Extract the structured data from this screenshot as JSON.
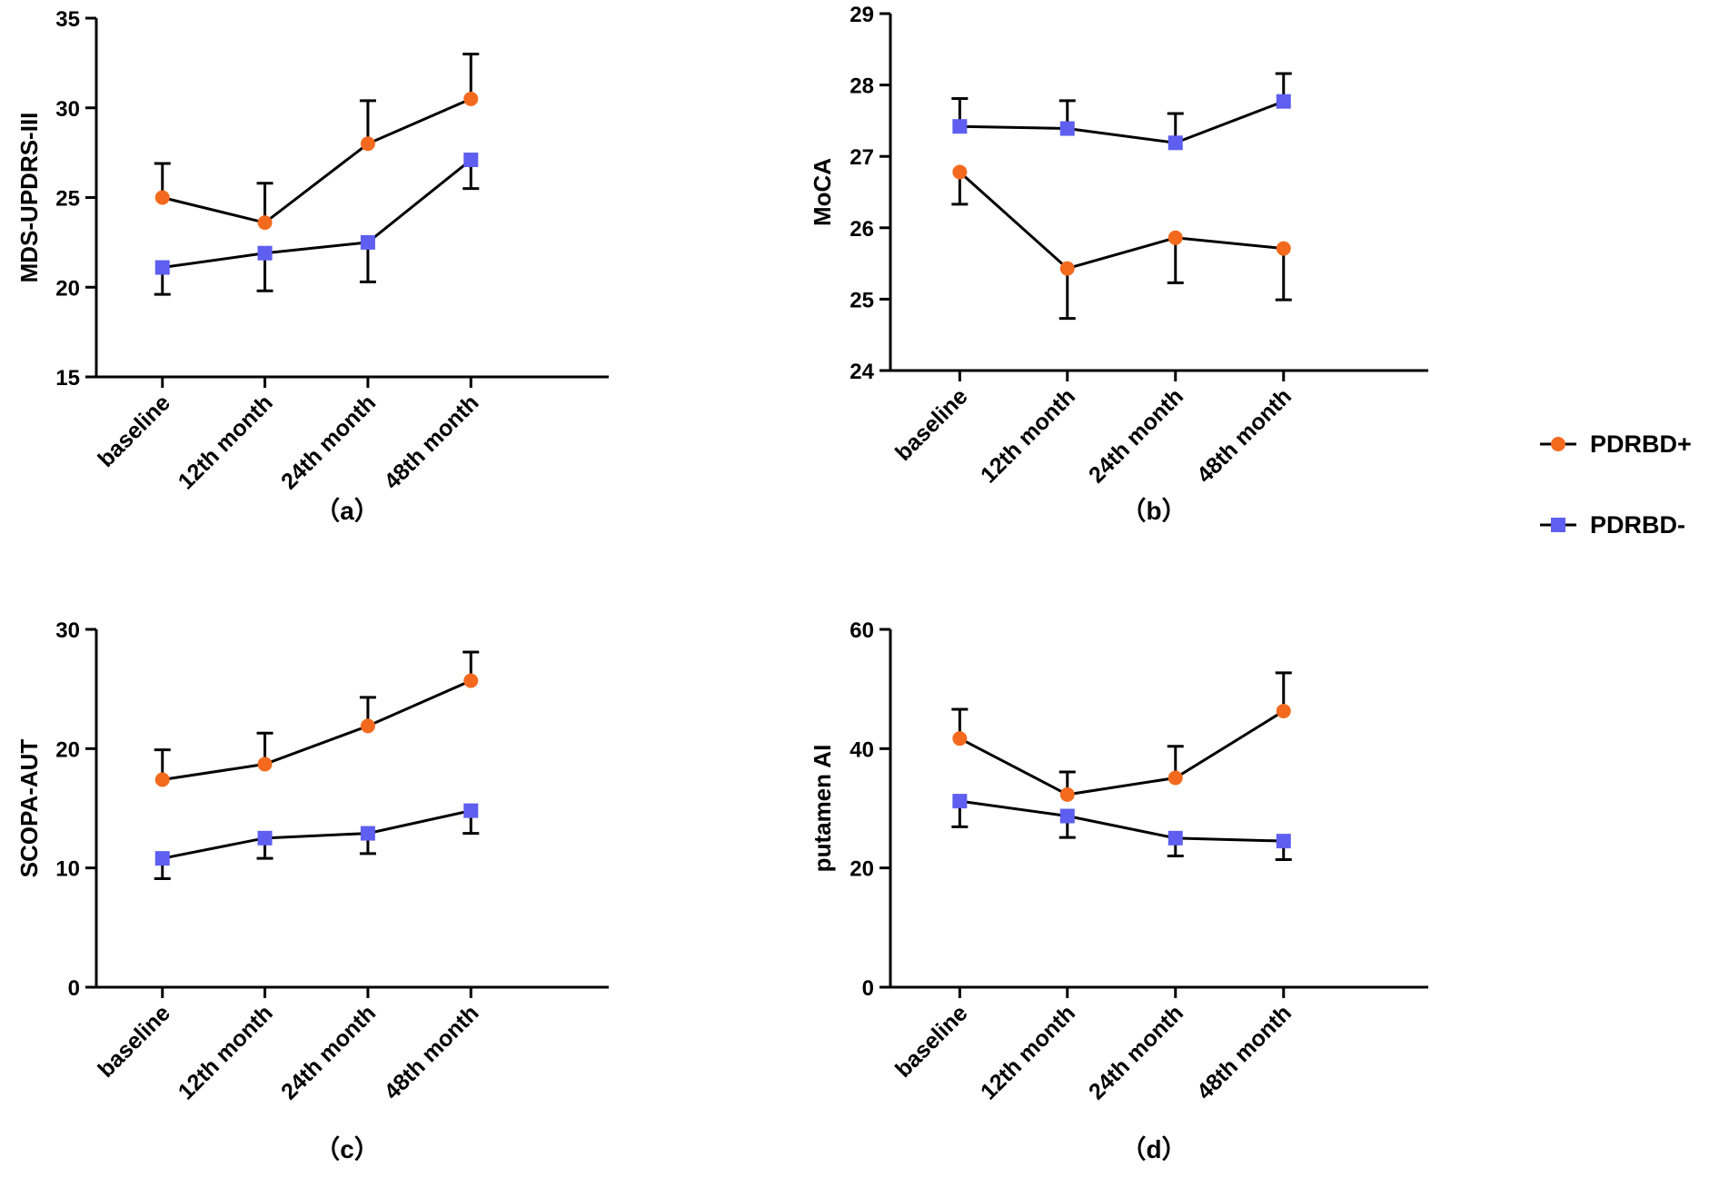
{
  "colors": {
    "positive": "#f36a1e",
    "negative": "#5e5ef0",
    "axis": "#000000",
    "line": "#000000"
  },
  "legend": {
    "position": "right",
    "items": [
      {
        "label": "PDRBD+",
        "series": "positive",
        "marker": "circle"
      },
      {
        "label": "PDRBD-",
        "series": "negative",
        "marker": "square"
      }
    ]
  },
  "chart_data": [
    {
      "type": "line",
      "panel": "a",
      "caption": "（a）",
      "title": "",
      "xlabel": "",
      "ylabel": "MDS-UPDRS-III",
      "ylim": [
        15,
        35
      ],
      "yticks": [
        15,
        20,
        25,
        30,
        35
      ],
      "categories": [
        "baseline",
        "12th month",
        "24th month",
        "48th month"
      ],
      "series": [
        {
          "name": "PDRBD+",
          "key": "positive",
          "values": [
            25.0,
            23.6,
            28.0,
            30.5
          ],
          "error_upper": [
            26.9,
            25.8,
            30.4,
            33.0
          ]
        },
        {
          "name": "PDRBD-",
          "key": "negative",
          "values": [
            21.1,
            21.9,
            22.5,
            27.1
          ],
          "error_lower": [
            19.6,
            19.8,
            20.3,
            25.5
          ]
        }
      ]
    },
    {
      "type": "line",
      "panel": "b",
      "caption": "（b）",
      "title": "",
      "xlabel": "",
      "ylabel": "MoCA",
      "ylim": [
        24,
        29
      ],
      "yticks": [
        24,
        25,
        26,
        27,
        28,
        29
      ],
      "categories": [
        "baseline",
        "12th month",
        "24th month",
        "48th month"
      ],
      "series": [
        {
          "name": "PDRBD+",
          "key": "positive",
          "values": [
            26.78,
            25.43,
            25.86,
            25.71
          ],
          "error_lower": [
            26.33,
            24.73,
            25.23,
            24.99
          ]
        },
        {
          "name": "PDRBD-",
          "key": "negative",
          "values": [
            27.42,
            27.39,
            27.19,
            27.77
          ],
          "error_upper": [
            27.81,
            27.78,
            27.6,
            28.16
          ]
        }
      ]
    },
    {
      "type": "line",
      "panel": "c",
      "caption": "（c）",
      "title": "",
      "xlabel": "",
      "ylabel": "SCOPA-AUT",
      "ylim": [
        0,
        30
      ],
      "yticks": [
        0,
        10,
        20,
        30
      ],
      "categories": [
        "baseline",
        "12th month",
        "24th month",
        "48th month"
      ],
      "series": [
        {
          "name": "PDRBD+",
          "key": "positive",
          "values": [
            17.4,
            18.7,
            21.9,
            25.7
          ],
          "error_upper": [
            19.9,
            21.3,
            24.3,
            28.1
          ]
        },
        {
          "name": "PDRBD-",
          "key": "negative",
          "values": [
            10.8,
            12.5,
            12.9,
            14.8
          ],
          "error_lower": [
            9.1,
            10.8,
            11.2,
            12.9
          ]
        }
      ]
    },
    {
      "type": "line",
      "panel": "d",
      "caption": "（d）",
      "title": "",
      "xlabel": "",
      "ylabel": "putamen AI",
      "ylim": [
        0,
        60
      ],
      "yticks": [
        0,
        20,
        40,
        60
      ],
      "categories": [
        "baseline",
        "12th month",
        "24th month",
        "48th month"
      ],
      "series": [
        {
          "name": "PDRBD+",
          "key": "positive",
          "values": [
            41.7,
            32.3,
            35.1,
            46.3
          ],
          "error_upper": [
            46.6,
            36.1,
            40.4,
            52.7
          ]
        },
        {
          "name": "PDRBD-",
          "key": "negative",
          "values": [
            31.2,
            28.7,
            25.0,
            24.5
          ],
          "error_lower": [
            26.9,
            25.1,
            22.0,
            21.4
          ]
        }
      ]
    }
  ]
}
